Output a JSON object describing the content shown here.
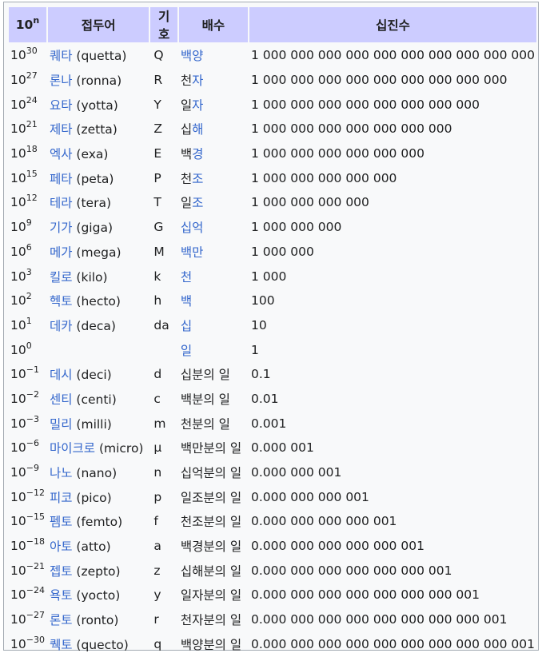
{
  "headers": {
    "power_base": "10",
    "power_exp": "n",
    "prefix": "접두어",
    "symbol": "기호",
    "multiple": "배수",
    "decimal": "십진수"
  },
  "rows": [
    {
      "exp": "30",
      "name_ko": "퀘타",
      "name_en": "(quetta)",
      "symbol": "Q",
      "mult_link": "백양",
      "mult_plain": "",
      "decimal": "1 000 000 000 000 000 000 000 000 000 000"
    },
    {
      "exp": "27",
      "name_ko": "론나",
      "name_en": "(ronna)",
      "symbol": "R",
      "mult_link": "",
      "mult_plain": "천",
      "mult_link2": "자",
      "decimal": "1 000 000 000 000 000 000 000 000 000"
    },
    {
      "exp": "24",
      "name_ko": "요타",
      "name_en": "(yotta)",
      "symbol": "Y",
      "mult_link": "",
      "mult_plain": "일",
      "mult_link2": "자",
      "decimal": "1 000 000 000 000 000 000 000 000"
    },
    {
      "exp": "21",
      "name_ko": "제타",
      "name_en": "(zetta)",
      "symbol": "Z",
      "mult_link": "",
      "mult_plain": "십",
      "mult_link2": "해",
      "decimal": "1 000 000 000 000 000 000 000"
    },
    {
      "exp": "18",
      "name_ko": "엑사",
      "name_en": "(exa)",
      "symbol": "E",
      "mult_link": "",
      "mult_plain": "백",
      "mult_link2": "경",
      "decimal": "1 000 000 000 000 000 000"
    },
    {
      "exp": "15",
      "name_ko": "페타",
      "name_en": "(peta)",
      "symbol": "P",
      "mult_link": "",
      "mult_plain": "천",
      "mult_link2": "조",
      "decimal": "1 000 000 000 000 000"
    },
    {
      "exp": "12",
      "name_ko": "테라",
      "name_en": "(tera)",
      "symbol": "T",
      "mult_link": "",
      "mult_plain": "일",
      "mult_link2": "조",
      "decimal": "1 000 000 000 000"
    },
    {
      "exp": "9",
      "name_ko": "기가",
      "name_en": "(giga)",
      "symbol": "G",
      "mult_link": "십억",
      "mult_plain": "",
      "decimal": "1 000 000 000"
    },
    {
      "exp": "6",
      "name_ko": "메가",
      "name_en": "(mega)",
      "symbol": "M",
      "mult_link": "백만",
      "mult_plain": "",
      "decimal": "1 000 000"
    },
    {
      "exp": "3",
      "name_ko": "킬로",
      "name_en": "(kilo)",
      "symbol": "k",
      "mult_link": "천",
      "mult_plain": "",
      "decimal": "1 000"
    },
    {
      "exp": "2",
      "name_ko": "헥토",
      "name_en": "(hecto)",
      "symbol": "h",
      "mult_link": "백",
      "mult_plain": "",
      "decimal": "100"
    },
    {
      "exp": "1",
      "name_ko": "데카",
      "name_en": "(deca)",
      "symbol": "da",
      "mult_link": "십",
      "mult_plain": "",
      "decimal": "10"
    },
    {
      "exp": "0",
      "name_ko": "",
      "name_en": "",
      "symbol": "",
      "mult_link": "일",
      "mult_plain": "",
      "decimal": "1"
    },
    {
      "exp": "−1",
      "name_ko": "데시",
      "name_en": "(deci)",
      "symbol": "d",
      "mult_link": "",
      "mult_plain": "십분의 일",
      "decimal": "0.1"
    },
    {
      "exp": "−2",
      "name_ko": "센티",
      "name_en": "(centi)",
      "symbol": "c",
      "mult_link": "",
      "mult_plain": "백분의 일",
      "decimal": "0.01"
    },
    {
      "exp": "−3",
      "name_ko": "밀리",
      "name_en": "(milli)",
      "symbol": "m",
      "mult_link": "",
      "mult_plain": "천분의 일",
      "decimal": "0.001"
    },
    {
      "exp": "−6",
      "name_ko": "마이크로",
      "name_en": "(micro)",
      "symbol": "μ",
      "mult_link": "",
      "mult_plain": "백만분의 일",
      "decimal": "0.000 001"
    },
    {
      "exp": "−9",
      "name_ko": "나노",
      "name_en": "(nano)",
      "symbol": "n",
      "mult_link": "",
      "mult_plain": "십억분의 일",
      "decimal": "0.000 000 001"
    },
    {
      "exp": "−12",
      "name_ko": "피코",
      "name_en": "(pico)",
      "symbol": "p",
      "mult_link": "",
      "mult_plain": "일조분의 일",
      "decimal": "0.000 000 000 001"
    },
    {
      "exp": "−15",
      "name_ko": "펨토",
      "name_en": "(femto)",
      "symbol": "f",
      "mult_link": "",
      "mult_plain": "천조분의 일",
      "decimal": "0.000 000 000 000 001"
    },
    {
      "exp": "−18",
      "name_ko": "아토",
      "name_en": "(atto)",
      "symbol": "a",
      "mult_link": "",
      "mult_plain": "백경분의 일",
      "decimal": "0.000 000 000 000 000 001"
    },
    {
      "exp": "−21",
      "name_ko": "젭토",
      "name_en": "(zepto)",
      "symbol": "z",
      "mult_link": "",
      "mult_plain": "십해분의 일",
      "decimal": "0.000 000 000 000 000 000 001"
    },
    {
      "exp": "−24",
      "name_ko": "욕토",
      "name_en": "(yocto)",
      "symbol": "y",
      "mult_link": "",
      "mult_plain": "일자분의 일",
      "decimal": "0.000 000 000 000 000 000 000 001"
    },
    {
      "exp": "−27",
      "name_ko": "론토",
      "name_en": "(ronto)",
      "symbol": "r",
      "mult_link": "",
      "mult_plain": "천자분의 일",
      "decimal": "0.000 000 000 000 000 000 000 000 001"
    },
    {
      "exp": "−30",
      "name_ko": "퀙토",
      "name_en": "(quecto)",
      "symbol": "q",
      "mult_link": "",
      "mult_plain": "백양분의 일",
      "decimal": "0.000 000 000 000 000 000 000 000 000 001"
    }
  ]
}
